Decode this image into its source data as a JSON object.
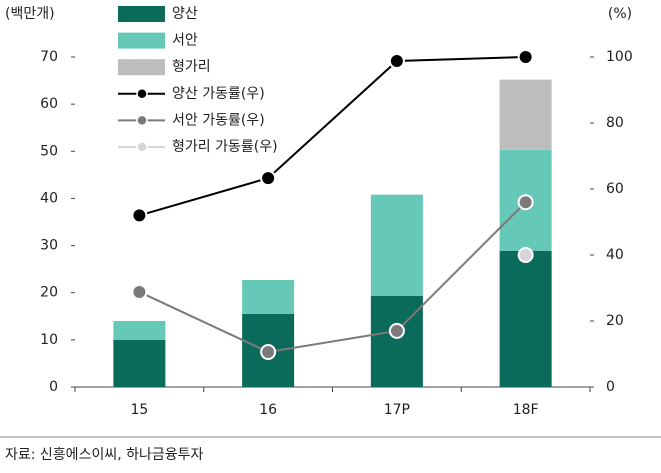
{
  "chart_data": {
    "type": "bar",
    "y_label": "(백만개)",
    "y2_label": "(%)",
    "categories": [
      "15",
      "16",
      "17P",
      "18F"
    ],
    "series": [
      {
        "name": "양산",
        "type": "bar",
        "color": "#0b6b5a",
        "values": [
          10,
          15.5,
          19.3,
          28.9
        ]
      },
      {
        "name": "서안",
        "type": "bar",
        "color": "#66c9b8",
        "values": [
          4,
          7.2,
          21.5,
          21.4
        ]
      },
      {
        "name": "형가리",
        "type": "bar",
        "color": "#bdbdbd",
        "values": [
          null,
          null,
          null,
          14.9
        ]
      },
      {
        "name": "양산 가동률(우)",
        "type": "line",
        "axis": "y2",
        "color": "#000000",
        "values": [
          52,
          63.3,
          98.8,
          100
        ]
      },
      {
        "name": "서안 가동률(우)",
        "type": "line",
        "axis": "y2",
        "color": "#7a7a7a",
        "values": [
          28.8,
          10.6,
          17,
          56
        ]
      },
      {
        "name": "형가리 가동률(우)",
        "type": "line",
        "axis": "y2",
        "color": "#d6d6d6",
        "values": [
          null,
          null,
          null,
          40
        ]
      }
    ],
    "ylim": [
      0,
      70
    ],
    "yticks": [
      0,
      10,
      20,
      30,
      40,
      50,
      60,
      70
    ],
    "y2lim": [
      0,
      100
    ],
    "y2ticks": [
      0,
      20,
      40,
      60,
      80,
      100
    ],
    "stacked": true,
    "source": "자료: 신흥에스이씨, 하나금융투자"
  }
}
